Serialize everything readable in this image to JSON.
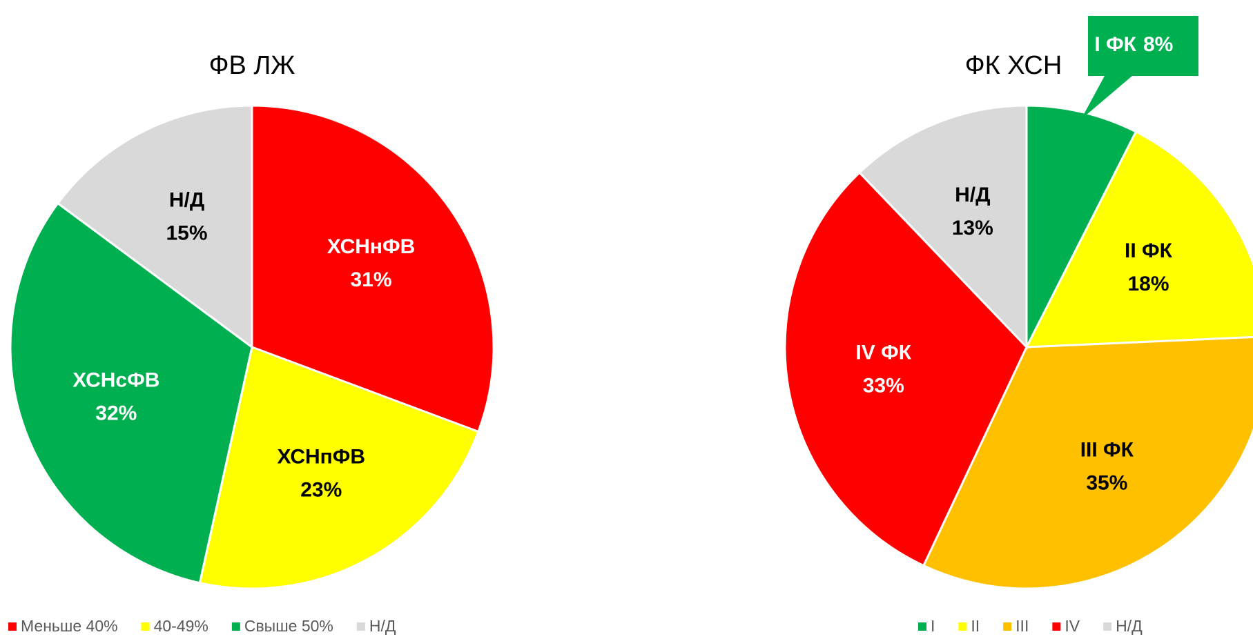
{
  "chart_data": [
    {
      "type": "pie",
      "title": "ФВ ЛЖ",
      "categories": [
        "Меньше 40%",
        "40-49%",
        "Свыше 50%",
        "Н/Д"
      ],
      "slice_names": [
        "ХСНнФВ",
        "ХСНпФВ",
        "ХСНсФВ",
        "Н/Д"
      ],
      "values": [
        31,
        23,
        32,
        15
      ],
      "value_labels": [
        "31%",
        "23%",
        "32%",
        "15%"
      ],
      "colors": [
        "#ff0000",
        "#ffff00",
        "#00b050",
        "#d9d9d9"
      ],
      "legend": "bottom"
    },
    {
      "type": "pie",
      "title": "ФК ХСН",
      "categories": [
        "I",
        "II",
        "III",
        "IV",
        "Н/Д"
      ],
      "slice_names": [
        "I ФК",
        "II ФК",
        "III ФК",
        "IV ФК",
        "Н/Д"
      ],
      "values": [
        8,
        18,
        35,
        33,
        13
      ],
      "value_labels": [
        "8%",
        "18%",
        "35%",
        "33%",
        "13%"
      ],
      "colors": [
        "#00b050",
        "#ffff00",
        "#ffc000",
        "#ff0000",
        "#d9d9d9"
      ],
      "legend": "bottom"
    }
  ]
}
